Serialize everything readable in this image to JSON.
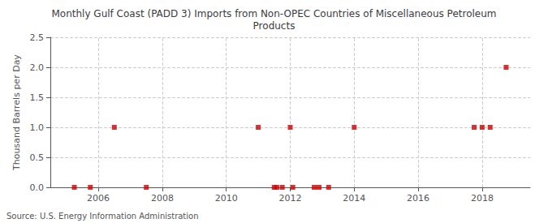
{
  "chart_data": {
    "type": "scatter",
    "title": "Monthly Gulf Coast (PADD 3) Imports from Non-OPEC Countries of Miscellaneous Petroleum\nProducts",
    "ylabel": "Thousand Barrels per Day",
    "annotations": [
      "Source: U.S. Energy Information Administration"
    ],
    "x": [
      2005.25,
      2005.75,
      2006.5,
      2007.5,
      2011.0,
      2011.5,
      2011.58,
      2011.75,
      2012.0,
      2012.08,
      2012.75,
      2012.9,
      2013.2,
      2014.0,
      2017.75,
      2018.0,
      2018.25,
      2018.75
    ],
    "values": [
      0,
      0,
      1,
      0,
      1,
      0,
      0,
      0,
      1,
      0,
      0,
      0,
      0,
      1,
      1,
      1,
      1,
      2
    ],
    "color": "#cc0000",
    "marker": "square",
    "xlim": [
      2004.5,
      2019.5
    ],
    "xticks": [
      2006,
      2008,
      2010,
      2012,
      2014,
      2016,
      2018
    ],
    "ylim": [
      0,
      2.5
    ],
    "yticks": [
      {
        "value": 0.0,
        "label": "0.0"
      },
      0.5,
      {
        "value": 1.0,
        "label": "1.0"
      },
      1.5,
      {
        "value": 2.0,
        "label": "2.0"
      },
      2.5
    ],
    "grid": true
  }
}
